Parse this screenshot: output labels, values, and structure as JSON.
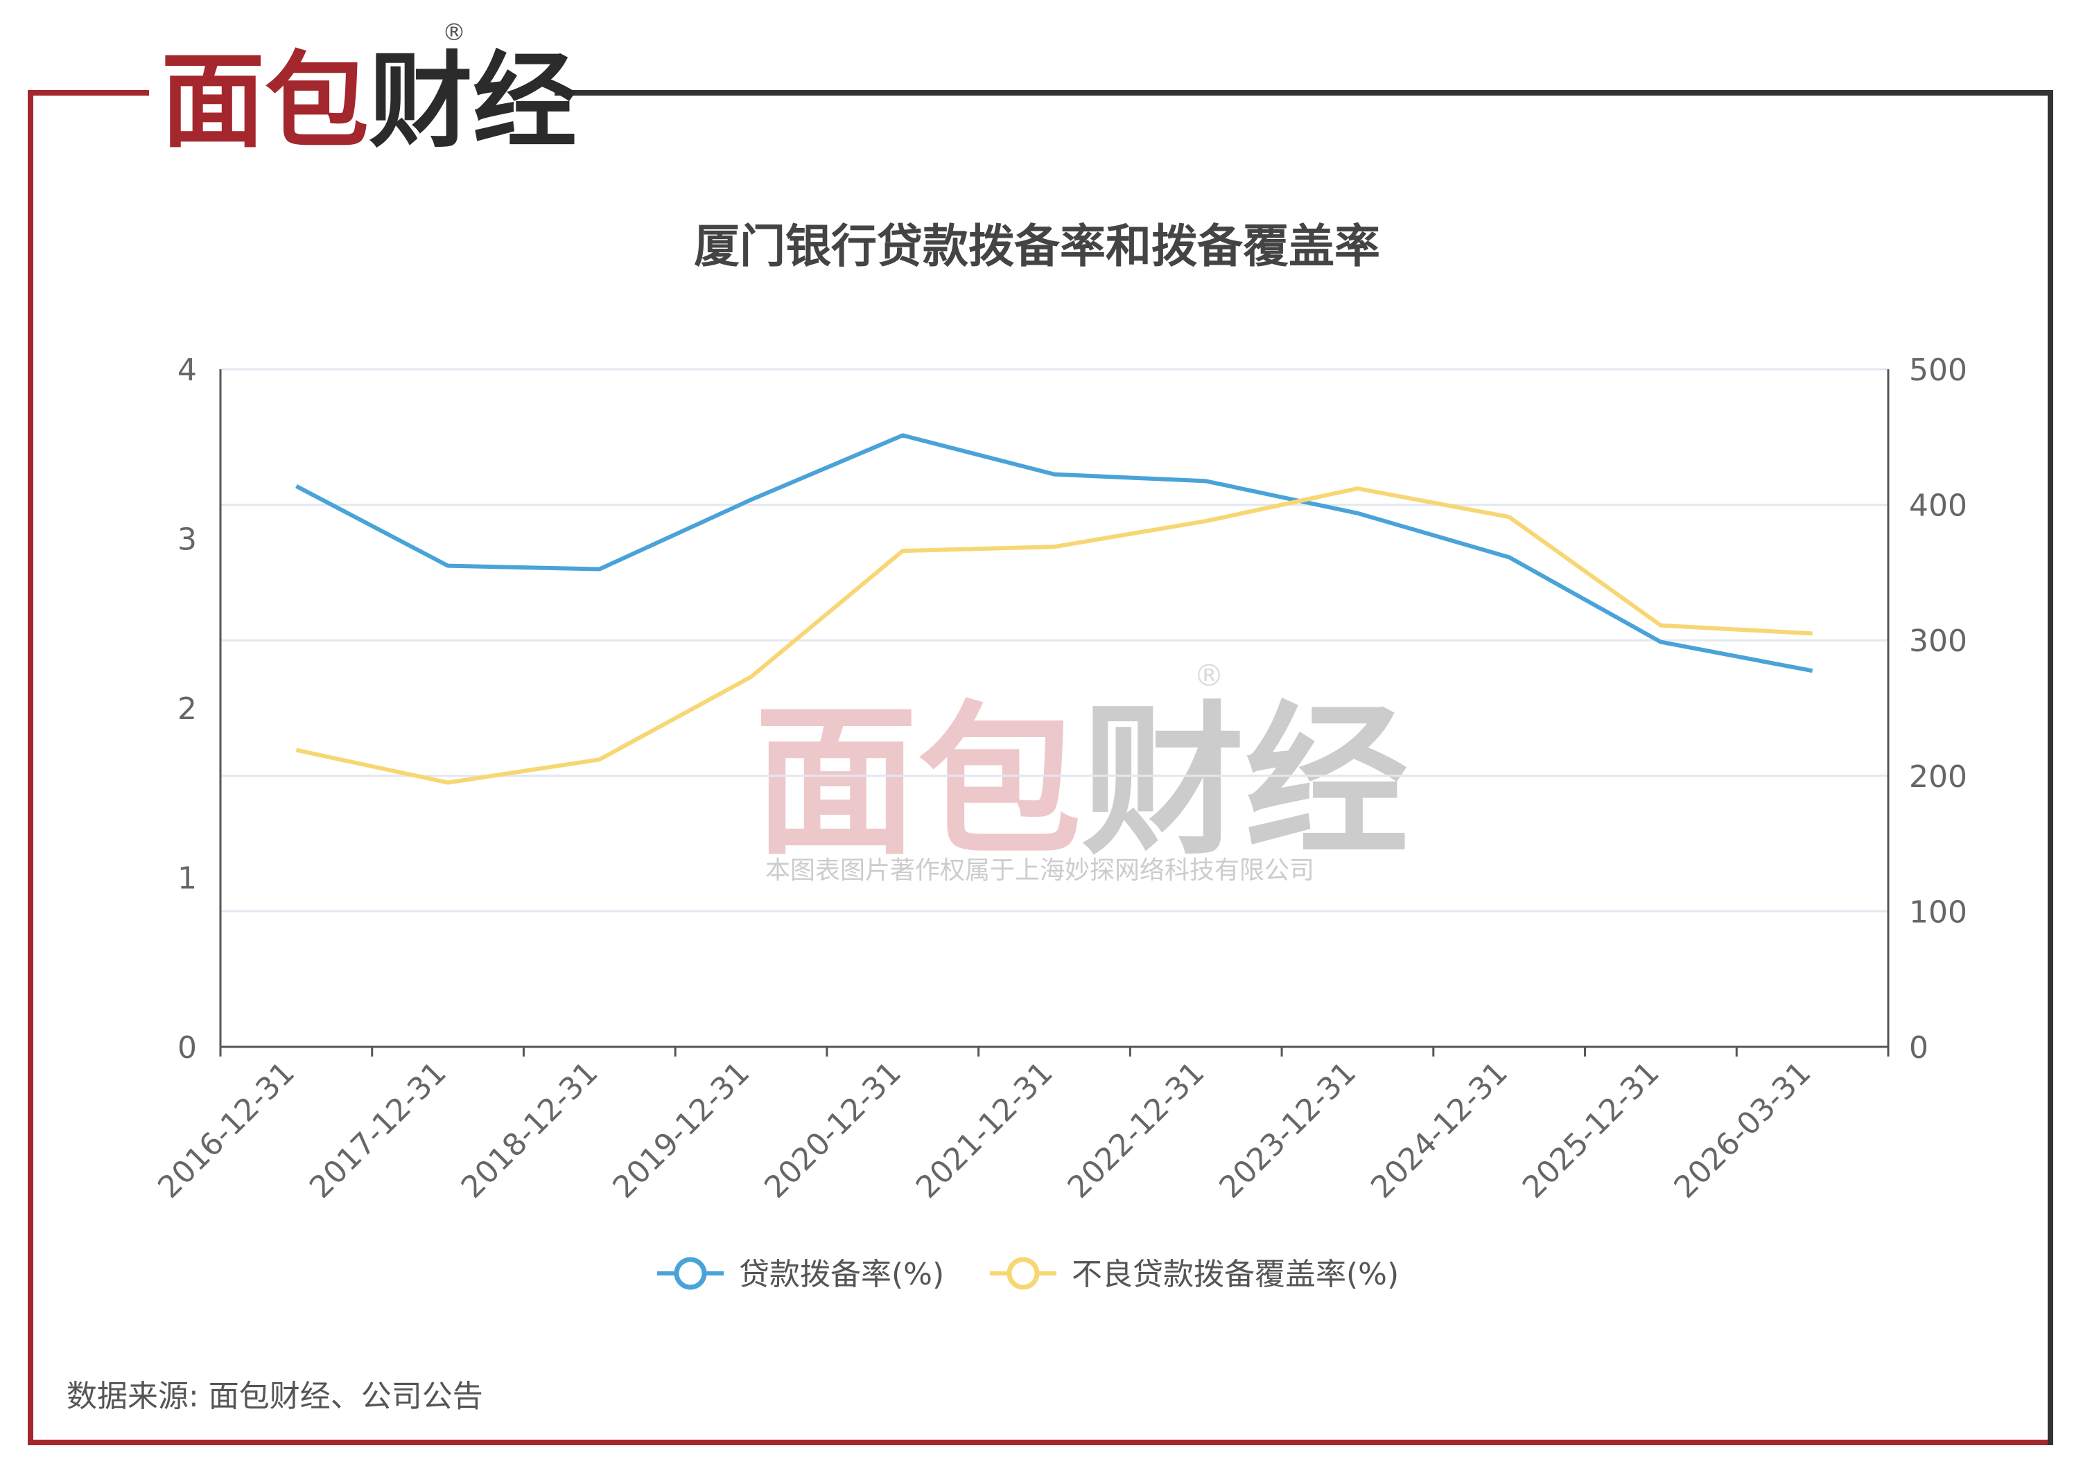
{
  "brand": {
    "name": "面包财经",
    "registered_mark": "®",
    "red": "#a5272e",
    "dark": "#333333"
  },
  "watermark": {
    "name": "面包财经",
    "registered_mark": "®",
    "caption": "本图表图片著作权属于上海妙探网络科技有限公司"
  },
  "source_note": "数据来源: 面包财经、公司公告",
  "chart_data": {
    "type": "line",
    "title": "厦门银行贷款拨备率和拨备覆盖率",
    "categories": [
      "2016-12-31",
      "2017-12-31",
      "2018-12-31",
      "2019-12-31",
      "2020-12-31",
      "2021-12-31",
      "2022-12-31",
      "2023-12-31",
      "2024-12-31",
      "2025-12-31",
      "2026-03-31"
    ],
    "y_left": {
      "min": 0,
      "max": 4,
      "ticks": [
        "0",
        "1",
        "2",
        "3",
        "4"
      ]
    },
    "y_right": {
      "min": 0,
      "max": 500,
      "ticks": [
        "0",
        "100",
        "200",
        "300",
        "400",
        "500"
      ]
    },
    "grid": true,
    "legend_position": "bottom",
    "series": [
      {
        "name": "贷款拨备率(%)",
        "axis": "left",
        "color": "#4aa3d8",
        "values": [
          3.31,
          2.84,
          2.82,
          3.23,
          3.61,
          3.38,
          3.34,
          3.15,
          2.89,
          2.39,
          2.22
        ]
      },
      {
        "name": "不良贷款拨备覆盖率(%)",
        "axis": "right",
        "color": "#f7d774",
        "values": [
          219,
          195,
          212,
          273,
          366,
          369,
          388,
          412,
          391,
          311,
          305
        ]
      }
    ]
  }
}
